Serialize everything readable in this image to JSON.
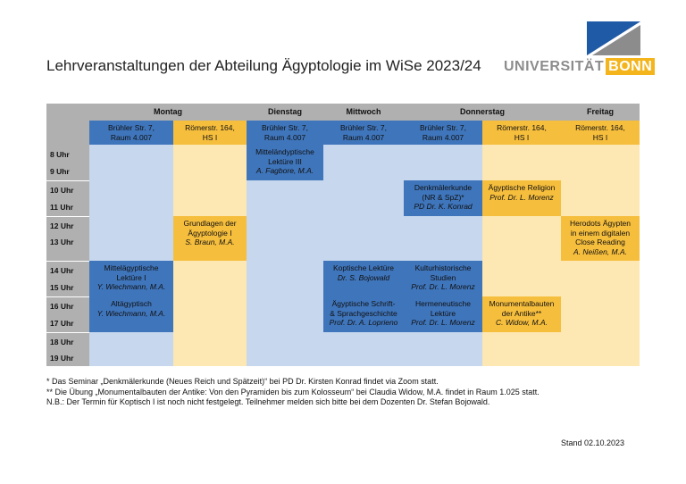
{
  "title": "Lehrveranstaltungen der Abteilung Ägyptologie im WiSe 2023/24",
  "logo": {
    "text_main": "UNIVERSITÄT",
    "text_highlight": "BONN",
    "colors": {
      "blue": "#1f5aa6",
      "gray": "#8c8c8c",
      "yellow": "#f3b41c"
    }
  },
  "days": [
    "Montag",
    "Dienstag",
    "Mittwoch",
    "Donnerstag",
    "Freitag"
  ],
  "rooms": [
    {
      "line1": "Brühler Str. 7,",
      "line2": "Raum 4.007"
    },
    {
      "line1": "Römerstr. 164,",
      "line2": "HS I"
    },
    {
      "line1": "Brühler Str. 7,",
      "line2": "Raum 4.007"
    },
    {
      "line1": "Brühler Str. 7,",
      "line2": "Raum 4.007"
    },
    {
      "line1": "Brühler Str. 7,",
      "line2": "Raum 4.007"
    },
    {
      "line1": "Römerstr. 164,",
      "line2": "HS I"
    },
    {
      "line1": "Römerstr. 164,",
      "line2": "HS I"
    }
  ],
  "times": [
    "8 Uhr",
    "9 Uhr",
    "10 Uhr",
    "11 Uhr",
    "12 Uhr",
    "13 Uhr",
    "14 Uhr",
    "15 Uhr",
    "16 Uhr",
    "17 Uhr",
    "18 Uhr",
    "19 Uhr"
  ],
  "courses": [
    {
      "lines": [
        "Mitteländyptische",
        "Lektüre III"
      ],
      "lecturer": "A. Fagbore, M.A."
    },
    {
      "lines": [
        "Denkmälerkunde",
        "(NR & SpZ)*"
      ],
      "lecturer": "PD Dr. K. Konrad"
    },
    {
      "lines": [
        "Ägyptische Religion"
      ],
      "lecturer": "Prof. Dr. L. Morenz"
    },
    {
      "lines": [
        "Grundlagen der",
        "Ägyptologie I"
      ],
      "lecturer": "S. Braun, M.A."
    },
    {
      "lines": [
        "Herodots Ägypten",
        "in einem digitalen",
        "Close Reading"
      ],
      "lecturer": "A. Neißen, M.A."
    },
    {
      "lines": [
        "Mittelägyptische",
        "Lektüre I"
      ],
      "lecturer": "Y. Wiechmann, M.A."
    },
    {
      "lines": [
        "Koptische Lektüre"
      ],
      "lecturer": "Dr. S. Bojowald"
    },
    {
      "lines": [
        "Kulturhistorische",
        "Studien"
      ],
      "lecturer": "Prof. Dr. L. Morenz"
    },
    {
      "lines": [
        "Altägyptisch"
      ],
      "lecturer": "Y. Wiechmann, M.A."
    },
    {
      "lines": [
        "Ägyptische Schrift-",
        "& Sprachgeschichte"
      ],
      "lecturer": "Prof. Dr. A. Loprieno"
    },
    {
      "lines": [
        "Hermeneutische",
        "Lektüre"
      ],
      "lecturer": "Prof. Dr. L. Morenz"
    },
    {
      "lines": [
        "Monumentalbauten",
        "der Antike**"
      ],
      "lecturer": "C. Widow, M.A."
    }
  ],
  "footnotes": [
    "* Das Seminar „Denkmälerkunde (Neues Reich und Spätzeit)“ bei PD Dr. Kirsten Konrad findet via Zoom statt.",
    "** Die Übung „Monumentalbauten der Antike: Von den Pyramiden bis zum Kolosseum“ bei Claudia Widow, M.A. findet in Raum 1.025 statt.",
    "N.B.: Der Termin für Koptisch I ist noch nicht festgelegt. Teilnehmer melden sich bitte bei dem Dozenten Dr. Stefan Bojowald."
  ],
  "stand": "Stand 02.10.2023"
}
